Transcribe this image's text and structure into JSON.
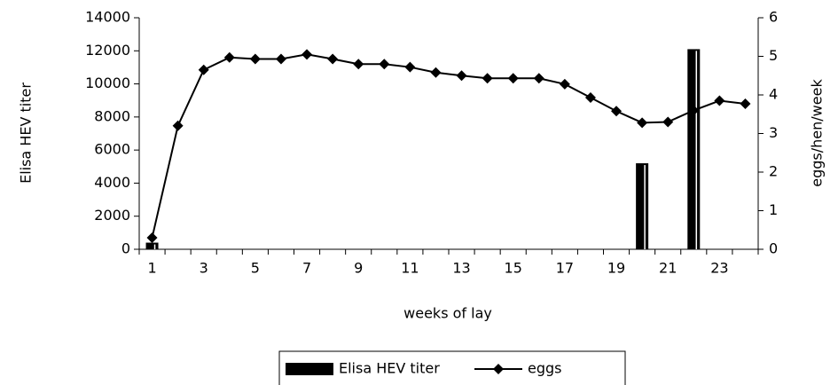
{
  "chart_data": {
    "type": "combo",
    "x_label": "weeks of lay",
    "y_label": "Elisa HEV titer",
    "y2_label": "eggs/hen/week",
    "categories": [
      1,
      null,
      3,
      null,
      5,
      null,
      7,
      null,
      9,
      null,
      11,
      null,
      13,
      null,
      15,
      null,
      17,
      null,
      19,
      null,
      21,
      null,
      23,
      null
    ],
    "series": [
      {
        "name": "Elisa HEV titer",
        "type": "bar",
        "color": "#000000",
        "values": [
          400,
          0,
          0,
          0,
          0,
          0,
          0,
          0,
          0,
          0,
          0,
          0,
          0,
          0,
          0,
          0,
          0,
          0,
          0,
          5200,
          0,
          12100,
          0,
          0
        ]
      },
      {
        "name": "eggs",
        "type": "line",
        "axis": "y2",
        "color": "#000000",
        "values": [
          0.3,
          3.2,
          4.65,
          4.97,
          4.93,
          4.93,
          5.05,
          4.93,
          4.8,
          4.8,
          4.72,
          4.58,
          4.5,
          4.43,
          4.43,
          4.43,
          4.28,
          3.93,
          3.58,
          3.28,
          3.3,
          3.6,
          3.85,
          3.77
        ]
      }
    ],
    "ylim": [
      0,
      14000
    ],
    "yticks": [
      0,
      2000,
      4000,
      6000,
      8000,
      10000,
      12000,
      14000
    ],
    "y2lim": [
      0,
      6
    ],
    "y2ticks": [
      0,
      1,
      2,
      3,
      4,
      5,
      6
    ],
    "legend": "bottom"
  }
}
